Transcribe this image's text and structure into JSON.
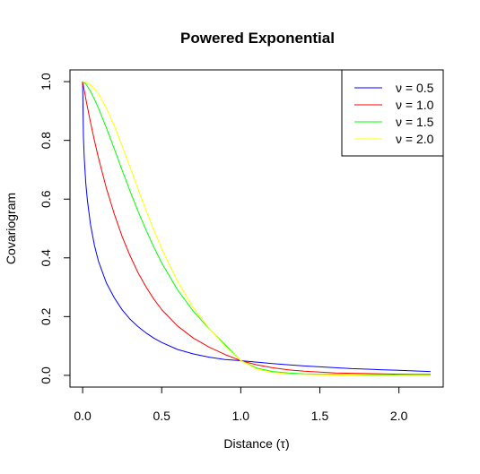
{
  "chart_data": {
    "type": "line",
    "title": "Powered Exponential",
    "xlabel": "Distance (τ)",
    "ylabel": "Covariogram",
    "xlim": [
      -0.08,
      2.28
    ],
    "ylim": [
      -0.04,
      1.04
    ],
    "x_ticks": [
      "0.0",
      "0.5",
      "1.0",
      "1.5",
      "2.0"
    ],
    "y_ticks": [
      "0.0",
      "0.2",
      "0.4",
      "0.6",
      "0.8",
      "1.0"
    ],
    "x": [
      0.0,
      0.005,
      0.01,
      0.02,
      0.03,
      0.05,
      0.075,
      0.1,
      0.15,
      0.2,
      0.25,
      0.3,
      0.35,
      0.4,
      0.45,
      0.5,
      0.6,
      0.7,
      0.8,
      0.9,
      1.0,
      1.1,
      1.2,
      1.3,
      1.4,
      1.5,
      1.6,
      1.7,
      1.8,
      1.9,
      2.0,
      2.1,
      2.2
    ],
    "legend_position": "top-right",
    "grid": false,
    "series": [
      {
        "name": "ν = 0.5",
        "color": "#0000ff",
        "values": [
          1.0,
          0.81,
          0.741,
          0.655,
          0.596,
          0.513,
          0.442,
          0.389,
          0.315,
          0.264,
          0.223,
          0.191,
          0.166,
          0.145,
          0.127,
          0.112,
          0.088,
          0.073,
          0.062,
          0.054,
          0.05,
          0.045,
          0.04,
          0.036,
          0.032,
          0.029,
          0.026,
          0.023,
          0.021,
          0.019,
          0.017,
          0.015,
          0.013
        ]
      },
      {
        "name": "ν = 1.0",
        "color": "#ff0000",
        "values": [
          1.0,
          0.985,
          0.971,
          0.942,
          0.914,
          0.861,
          0.799,
          0.741,
          0.638,
          0.549,
          0.472,
          0.407,
          0.35,
          0.302,
          0.26,
          0.224,
          0.168,
          0.127,
          0.096,
          0.071,
          0.05,
          0.036,
          0.026,
          0.019,
          0.014,
          0.011,
          0.008,
          0.007,
          0.006,
          0.005,
          0.004,
          0.003,
          0.003
        ]
      },
      {
        "name": "ν = 1.5",
        "color": "#00ff00",
        "values": [
          1.0,
          0.999,
          0.997,
          0.992,
          0.984,
          0.967,
          0.94,
          0.91,
          0.843,
          0.771,
          0.698,
          0.627,
          0.559,
          0.496,
          0.437,
          0.383,
          0.291,
          0.218,
          0.159,
          0.105,
          0.05,
          0.025,
          0.013,
          0.008,
          0.005,
          0.004,
          0.003,
          0.002,
          0.002,
          0.002,
          0.001,
          0.001,
          0.001
        ]
      },
      {
        "name": "ν = 2.0",
        "color": "#ffff00",
        "values": [
          1.0,
          1.0,
          0.999,
          0.998,
          0.996,
          0.989,
          0.976,
          0.958,
          0.91,
          0.849,
          0.78,
          0.708,
          0.635,
          0.563,
          0.495,
          0.431,
          0.32,
          0.23,
          0.16,
          0.1,
          0.05,
          0.022,
          0.01,
          0.005,
          0.003,
          0.002,
          0.001,
          0.001,
          0.0,
          0.0,
          0.0,
          0.0,
          0.0
        ]
      }
    ]
  }
}
